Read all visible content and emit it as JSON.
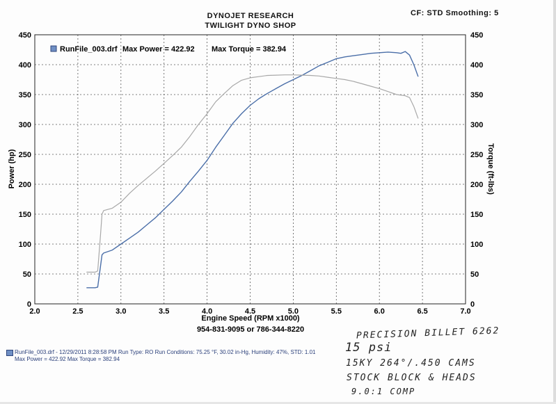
{
  "header": {
    "title1": "DYNOJET RESEARCH",
    "title2": "TWILIGHT DYNO SHOP",
    "cf": "CF: STD  Smoothing: 5",
    "phone": "954-831-9095 or 786-344-8220"
  },
  "footer": {
    "line1": "RunFile_003.drf - 12/29/2011 8:28:58 PM  Run Type: RO  Run Conditions: 75.25 °F, 30.02 in-Hg,  Humidity:  47%,  STD: 1.01",
    "line2": "Max Power = 422.92   Max Torque = 382.94"
  },
  "handwriting": {
    "line1": "PRECISION BILLET 6262",
    "line2": "15 psi",
    "line3": "15KY 264°/.450 CAMS",
    "line4": "STOCK BLOCK & HEADS",
    "line5": "9.0:1 COMP"
  },
  "chart_data": {
    "type": "line",
    "legend": {
      "file": "RunFile_003.drf",
      "max_power": "Max Power = 422.92",
      "max_torque": "Max Torque = 382.94",
      "placement": "top-left"
    },
    "xlabel": "Engine Speed (RPM x1000)",
    "ylabel_left": "Power (hp)",
    "ylabel_right": "Torque (ft-lbs)",
    "xlim": [
      2.0,
      7.0
    ],
    "ylim": [
      0,
      450
    ],
    "xticks": [
      "2.0",
      "2.5",
      "3.0",
      "3.5",
      "4.0",
      "4.5",
      "5.0",
      "5.5",
      "6.0",
      "6.5",
      "7.0"
    ],
    "yticks": [
      "0",
      "50",
      "100",
      "150",
      "200",
      "250",
      "300",
      "350",
      "400",
      "450"
    ],
    "grid": true,
    "series": [
      {
        "key": "power",
        "color": "#4a6ea8",
        "x": [
          2.6,
          2.7,
          2.73,
          2.76,
          2.78,
          2.8,
          2.9,
          3.0,
          3.1,
          3.2,
          3.3,
          3.4,
          3.5,
          3.6,
          3.7,
          3.8,
          3.9,
          4.0,
          4.1,
          4.2,
          4.3,
          4.4,
          4.5,
          4.6,
          4.7,
          4.8,
          4.9,
          5.0,
          5.1,
          5.2,
          5.3,
          5.4,
          5.5,
          5.6,
          5.7,
          5.8,
          5.9,
          6.0,
          6.1,
          6.2,
          6.25,
          6.3,
          6.35,
          6.4,
          6.45
        ],
        "y": [
          27,
          27,
          28,
          60,
          82,
          85,
          90,
          100,
          110,
          120,
          132,
          144,
          158,
          172,
          187,
          205,
          222,
          240,
          262,
          282,
          302,
          318,
          332,
          343,
          352,
          360,
          368,
          375,
          382,
          390,
          398,
          404,
          410,
          413,
          415,
          417,
          419,
          420,
          421,
          420,
          419,
          422,
          416,
          400,
          380
        ]
      },
      {
        "key": "torque",
        "color": "#a8a8a8",
        "x": [
          2.6,
          2.7,
          2.73,
          2.76,
          2.78,
          2.8,
          2.9,
          3.0,
          3.1,
          3.2,
          3.3,
          3.4,
          3.5,
          3.6,
          3.7,
          3.8,
          3.9,
          4.0,
          4.1,
          4.2,
          4.3,
          4.4,
          4.5,
          4.6,
          4.7,
          4.8,
          4.9,
          5.0,
          5.1,
          5.2,
          5.3,
          5.4,
          5.5,
          5.6,
          5.7,
          5.8,
          5.9,
          6.0,
          6.1,
          6.2,
          6.3,
          6.35,
          6.4,
          6.45
        ],
        "y": [
          53,
          53,
          55,
          110,
          150,
          156,
          160,
          170,
          185,
          198,
          210,
          222,
          235,
          248,
          262,
          280,
          300,
          318,
          338,
          352,
          365,
          374,
          378,
          380,
          382,
          382.5,
          382.9,
          382.9,
          382.5,
          382,
          381,
          379,
          377,
          375,
          372,
          368,
          364,
          360,
          355,
          350,
          348,
          345,
          330,
          310
        ]
      }
    ]
  }
}
